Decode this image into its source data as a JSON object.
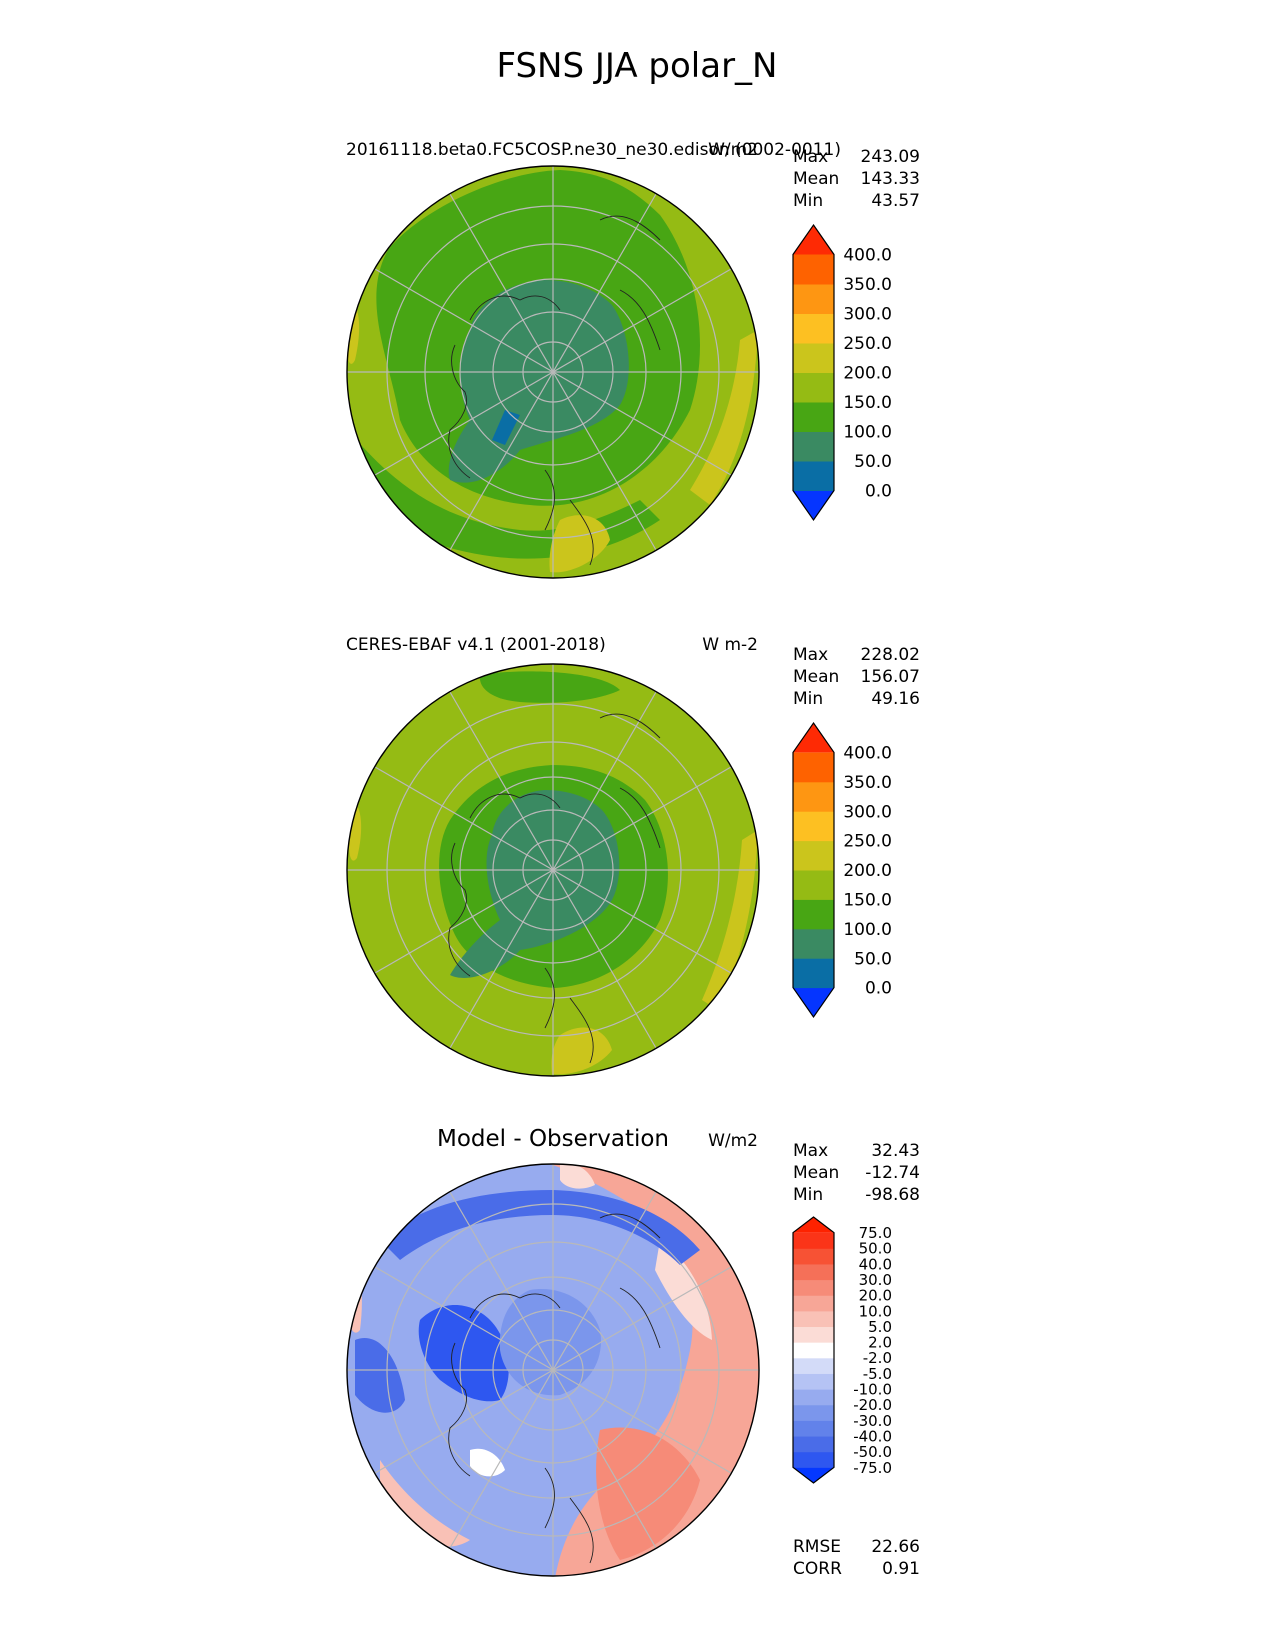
{
  "title": "FSNS JJA polar_N",
  "chart_data": [
    {
      "type": "heatmap",
      "projection": "north-polar-stereographic",
      "left_label": "20161118.beta0.FC5COSP.ne30_ne30.edison (0002-0011)",
      "units": "W/m2",
      "stats": [
        {
          "label": "Max",
          "value": "243.09"
        },
        {
          "label": "Mean",
          "value": "143.33"
        },
        {
          "label": "Min",
          "value": "43.57"
        }
      ],
      "colorbar": {
        "levels": [
          "0.0",
          "50.0",
          "100.0",
          "150.0",
          "200.0",
          "250.0",
          "300.0",
          "350.0",
          "400.0"
        ],
        "colors": [
          "#0535ff",
          "#0a6ea5",
          "#3a8a62",
          "#48a614",
          "#95bb14",
          "#cbc51c",
          "#fdc022",
          "#fe9612",
          "#fe6200",
          "#fe2a04"
        ],
        "extend": "both"
      }
    },
    {
      "type": "heatmap",
      "projection": "north-polar-stereographic",
      "left_label": "CERES-EBAF v4.1 (2001-2018)",
      "units": "W m-2",
      "stats": [
        {
          "label": "Max",
          "value": "228.02"
        },
        {
          "label": "Mean",
          "value": "156.07"
        },
        {
          "label": "Min",
          "value": "49.16"
        }
      ],
      "colorbar": {
        "levels": [
          "0.0",
          "50.0",
          "100.0",
          "150.0",
          "200.0",
          "250.0",
          "300.0",
          "350.0",
          "400.0"
        ],
        "colors": [
          "#0535ff",
          "#0a6ea5",
          "#3a8a62",
          "#48a614",
          "#95bb14",
          "#cbc51c",
          "#fdc022",
          "#fe9612",
          "#fe6200",
          "#fe2a04"
        ],
        "extend": "both"
      }
    },
    {
      "type": "heatmap",
      "projection": "north-polar-stereographic",
      "center_title": "Model - Observation",
      "units": "W/m2",
      "stats": [
        {
          "label": "Max",
          "value": "32.43"
        },
        {
          "label": "Mean",
          "value": "-12.74"
        },
        {
          "label": "Min",
          "value": "-98.68"
        }
      ],
      "bottom_stats": [
        {
          "label": "RMSE",
          "value": "22.66"
        },
        {
          "label": "CORR",
          "value": "0.91"
        }
      ],
      "colorbar": {
        "levels": [
          "-75.0",
          "-50.0",
          "-40.0",
          "-30.0",
          "-20.0",
          "-10.0",
          "-5.0",
          "-2.0",
          "2.0",
          "5.0",
          "10.0",
          "20.0",
          "30.0",
          "40.0",
          "50.0",
          "75.0"
        ],
        "colors": [
          "#0538ff",
          "#2e57f0",
          "#4a6ce8",
          "#6282ea",
          "#7b96ec",
          "#97abef",
          "#b5c3f4",
          "#d3dbf8",
          "#ffffff",
          "#fbdcd6",
          "#f9c1b6",
          "#f7a697",
          "#f68b78",
          "#f57058",
          "#f75234",
          "#fb3418",
          "#fe2200"
        ],
        "extend": "both"
      }
    }
  ]
}
